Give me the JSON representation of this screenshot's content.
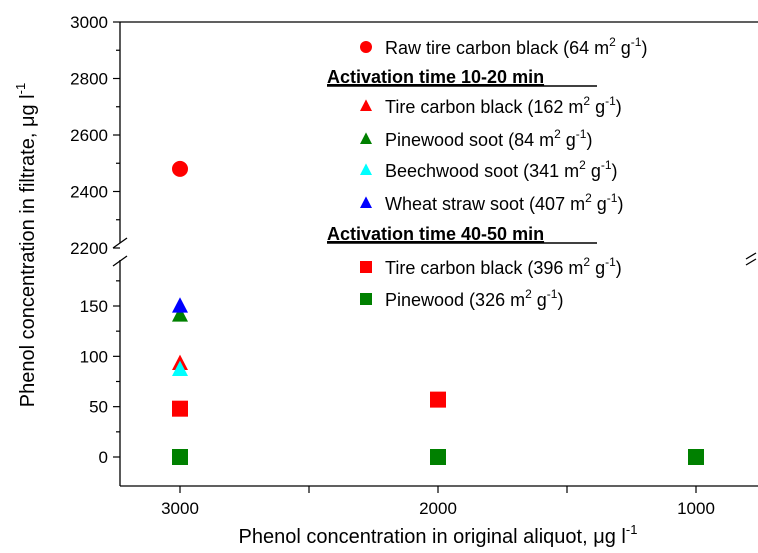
{
  "chart_data": {
    "type": "scatter",
    "xlabel": "Phenol concentration in original aliquot, μg l",
    "xlabel_sup": "-1",
    "ylabel": "Phenol concentration in filtrate, μg l",
    "ylabel_sup": "-1",
    "x_reversed": true,
    "xlim": [
      3500,
      750
    ],
    "x_ticks": [
      3000,
      2000,
      1000
    ],
    "x_minor_ticks": [
      2500,
      1500
    ],
    "y_broken": true,
    "y_lower_range": [
      -20,
      190
    ],
    "y_upper_range": [
      2150,
      3000
    ],
    "y_ticks_lower": [
      0,
      50,
      100,
      150
    ],
    "y_ticks_upper": [
      2200,
      2400,
      2600,
      2800,
      3000
    ],
    "legend_groups": [
      {
        "header": "",
        "entries": [
          0
        ]
      },
      {
        "header": "Activation time 10-20 min",
        "entries": [
          1,
          2,
          3,
          4
        ]
      },
      {
        "header": "Activation time 40-50 min",
        "entries": [
          5,
          6
        ]
      }
    ],
    "series": [
      {
        "name": "Raw tire carbon black (64 m",
        "sup1": "2",
        "mid": " g",
        "sup2": "-1",
        "end": ")",
        "marker": "circle",
        "color": "#ff0000",
        "points": [
          [
            3000,
            2480
          ]
        ]
      },
      {
        "name": "Tire carbon black (162 m",
        "sup1": "2",
        "mid": " g",
        "sup2": "-1",
        "end": ")",
        "marker": "triangle",
        "color": "#ff0000",
        "points": [
          [
            3000,
            93
          ]
        ]
      },
      {
        "name": "Pinewood soot (84 m",
        "sup1": "2",
        "mid": " g",
        "sup2": "-1",
        "end": ")",
        "marker": "triangle",
        "color": "#008000",
        "points": [
          [
            3000,
            141
          ]
        ]
      },
      {
        "name": "Beechwood soot (341 m",
        "sup1": "2",
        "mid": " g",
        "sup2": "-1",
        "end": ")",
        "marker": "triangle",
        "color": "#00ffff",
        "points": [
          [
            3000,
            87
          ]
        ]
      },
      {
        "name": "Wheat straw soot (407 m",
        "sup1": "2",
        "mid": " g",
        "sup2": "-1",
        "end": ")",
        "marker": "triangle",
        "color": "#0000ff",
        "points": [
          [
            3000,
            150
          ]
        ]
      },
      {
        "name": "Tire carbon black (396 m",
        "sup1": "2",
        "mid": " g",
        "sup2": "-1",
        "end": ")",
        "marker": "square",
        "color": "#ff0000",
        "points": [
          [
            3000,
            48
          ],
          [
            2000,
            57
          ]
        ]
      },
      {
        "name": "Pinewood (326 m",
        "sup1": "2",
        "mid": " g",
        "sup2": "-1",
        "end": ")",
        "marker": "square",
        "color": "#008000",
        "points": [
          [
            3000,
            0
          ],
          [
            2000,
            0
          ],
          [
            1000,
            0
          ]
        ]
      }
    ]
  }
}
